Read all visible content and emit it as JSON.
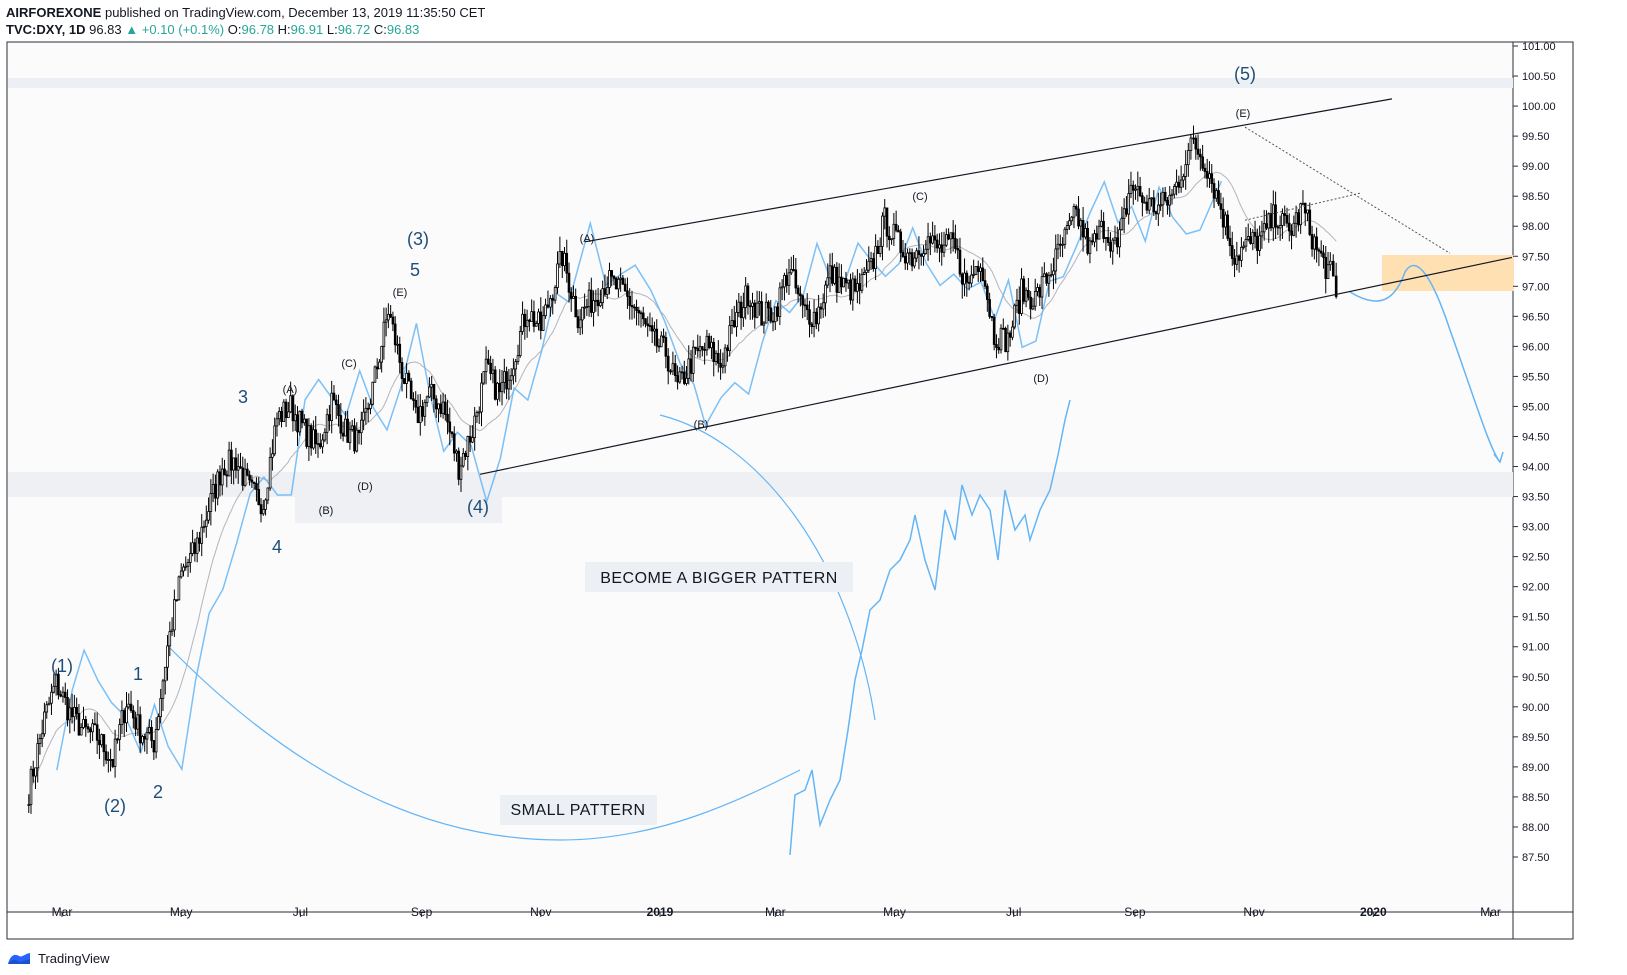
{
  "header": {
    "publisher": "AIRFOREXONE",
    "published_text": "published on TradingView.com, December 13, 2019 11:35:50 CET",
    "symbol": "TVC:DXY, 1D",
    "last": "96.83",
    "change": "▲ +0.10 (+0.1%)",
    "o_label": "O:",
    "o": "96.78",
    "h_label": "H:",
    "h": "96.91",
    "l_label": "L:",
    "l": "96.72",
    "c_label": "C:",
    "c": "96.83"
  },
  "footer": {
    "brand": "TradingView",
    "logo_icon": "tradingview-logo-icon"
  },
  "colors": {
    "candle": "#000000",
    "projection_line": "#64b5f6",
    "wave_label": "#1f4e79",
    "ma_line": "#b2b5be",
    "zone_fill": "#ffe0b2",
    "grid_band": "#eceff4"
  },
  "chart_data": {
    "type": "line",
    "title": "",
    "xlabel": "",
    "ylabel": "",
    "ylim": [
      87.25,
      101.0
    ],
    "x_ticks": [
      "Mar",
      "May",
      "Jul",
      "Sep",
      "Nov",
      "2019",
      "Mar",
      "May",
      "Jul",
      "Sep",
      "Nov",
      "2020",
      "Mar"
    ],
    "y_ticks": [
      "101.00",
      "100.50",
      "100.00",
      "99.50",
      "99.00",
      "98.50",
      "98.00",
      "97.50",
      "97.00",
      "96.50",
      "96.00",
      "95.50",
      "95.00",
      "94.50",
      "94.00",
      "93.50",
      "93.00",
      "92.50",
      "92.00",
      "91.50",
      "91.00",
      "90.50",
      "90.00",
      "89.50",
      "89.00",
      "88.50",
      "88.00",
      "87.50"
    ],
    "series": [
      {
        "values_approx": [
          [
            "2018-02-12",
            88.6
          ],
          [
            "2018-02-20",
            89.8
          ],
          [
            "2018-02-26",
            90.4
          ],
          [
            "2018-03-05",
            89.9
          ],
          [
            "2018-03-12",
            89.6
          ],
          [
            "2018-03-19",
            89.5
          ],
          [
            "2018-03-27",
            89.1
          ],
          [
            "2018-04-03",
            90.1
          ],
          [
            "2018-04-10",
            89.6
          ],
          [
            "2018-04-17",
            89.4
          ],
          [
            "2018-04-24",
            91.0
          ],
          [
            "2018-05-01",
            92.2
          ],
          [
            "2018-05-08",
            92.6
          ],
          [
            "2018-05-15",
            93.3
          ],
          [
            "2018-05-22",
            94.0
          ],
          [
            "2018-05-29",
            94.1
          ],
          [
            "2018-06-05",
            93.6
          ],
          [
            "2018-06-12",
            93.4
          ],
          [
            "2018-06-19",
            94.8
          ],
          [
            "2018-06-26",
            95.0
          ],
          [
            "2018-07-03",
            94.6
          ],
          [
            "2018-07-10",
            94.3
          ],
          [
            "2018-07-17",
            95.1
          ],
          [
            "2018-07-24",
            94.6
          ],
          [
            "2018-07-31",
            94.4
          ],
          [
            "2018-08-07",
            95.3
          ],
          [
            "2018-08-15",
            96.6
          ],
          [
            "2018-08-22",
            95.6
          ],
          [
            "2018-08-29",
            94.8
          ],
          [
            "2018-09-05",
            95.2
          ],
          [
            "2018-09-12",
            95.0
          ],
          [
            "2018-09-20",
            94.0
          ],
          [
            "2018-09-27",
            94.6
          ],
          [
            "2018-10-04",
            95.6
          ],
          [
            "2018-10-11",
            95.2
          ],
          [
            "2018-10-18",
            95.8
          ],
          [
            "2018-10-25",
            96.6
          ],
          [
            "2018-11-01",
            96.3
          ],
          [
            "2018-11-12",
            97.5
          ],
          [
            "2018-11-20",
            96.5
          ],
          [
            "2018-11-28",
            96.8
          ],
          [
            "2018-12-05",
            97.1
          ],
          [
            "2018-12-13",
            96.9
          ],
          [
            "2018-12-20",
            96.6
          ],
          [
            "2018-12-28",
            96.1
          ],
          [
            "2019-01-04",
            95.9
          ],
          [
            "2019-01-10",
            95.3
          ],
          [
            "2019-01-18",
            95.8
          ],
          [
            "2019-01-25",
            96.0
          ],
          [
            "2019-02-01",
            95.7
          ],
          [
            "2019-02-08",
            96.4
          ],
          [
            "2019-02-15",
            96.9
          ],
          [
            "2019-02-22",
            96.5
          ],
          [
            "2019-03-01",
            96.6
          ],
          [
            "2019-03-08",
            97.3
          ],
          [
            "2019-03-15",
            96.6
          ],
          [
            "2019-03-22",
            96.5
          ],
          [
            "2019-03-29",
            97.2
          ],
          [
            "2019-04-05",
            97.0
          ],
          [
            "2019-04-12",
            96.9
          ],
          [
            "2019-04-19",
            97.3
          ],
          [
            "2019-04-26",
            98.1
          ],
          [
            "2019-05-03",
            97.7
          ],
          [
            "2019-05-10",
            97.5
          ],
          [
            "2019-05-17",
            97.8
          ],
          [
            "2019-05-24",
            97.6
          ],
          [
            "2019-05-31",
            97.7
          ],
          [
            "2019-06-07",
            97.0
          ],
          [
            "2019-06-14",
            97.5
          ],
          [
            "2019-06-21",
            96.2
          ],
          [
            "2019-06-28",
            96.1
          ],
          [
            "2019-07-05",
            96.9
          ],
          [
            "2019-07-12",
            96.8
          ],
          [
            "2019-07-19",
            97.2
          ],
          [
            "2019-07-26",
            97.7
          ],
          [
            "2019-08-02",
            98.2
          ],
          [
            "2019-08-09",
            97.6
          ],
          [
            "2019-08-16",
            98.0
          ],
          [
            "2019-08-23",
            97.6
          ],
          [
            "2019-08-30",
            98.7
          ],
          [
            "2019-09-06",
            98.4
          ],
          [
            "2019-09-13",
            98.3
          ],
          [
            "2019-09-20",
            98.5
          ],
          [
            "2019-09-27",
            99.1
          ],
          [
            "2019-10-01",
            99.4
          ],
          [
            "2019-10-08",
            99.0
          ],
          [
            "2019-10-15",
            98.3
          ],
          [
            "2019-10-22",
            97.5
          ],
          [
            "2019-10-29",
            97.7
          ],
          [
            "2019-11-05",
            97.8
          ],
          [
            "2019-11-12",
            98.2
          ],
          [
            "2019-11-19",
            97.9
          ],
          [
            "2019-11-26",
            98.3
          ],
          [
            "2019-12-03",
            97.6
          ],
          [
            "2019-12-10",
            97.2
          ],
          [
            "2019-12-13",
            96.83
          ]
        ]
      }
    ],
    "annotations": [
      "(1)",
      "(2)",
      "(3)",
      "(4)",
      "(5)",
      "1",
      "2",
      "3",
      "4",
      "5",
      "(A)",
      "(B)",
      "(C)",
      "(D)",
      "(E)",
      "(A)",
      "(B)",
      "(C)",
      "(D)",
      "(E)",
      "BECOME A BIGGER PATTERN",
      "SMALL PATTERN"
    ],
    "grid": false,
    "legend": "none"
  }
}
